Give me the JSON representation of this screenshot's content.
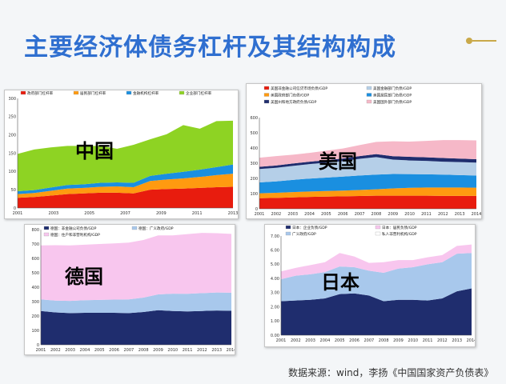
{
  "slide": {
    "title": "主要经济体债务杠杆及其结构构成",
    "source": "数据来源：wind，李扬《中国国家资产负债表》"
  },
  "chart_data": [
    {
      "id": "china",
      "type": "area",
      "stacked": true,
      "country_label": "中国",
      "ylim": [
        0,
        300
      ],
      "yticks": [
        "0",
        "50",
        "100",
        "150",
        "200",
        "250",
        "300"
      ],
      "xticks": [
        "2001",
        "2003",
        "2005",
        "2007",
        "2009",
        "2011",
        "2013"
      ],
      "legend": [
        "政府部门杠杆率",
        "居民部门杠杆率",
        "金融机构杠杆率",
        "企业部门杠杆率"
      ],
      "x": [
        2001,
        2002,
        2003,
        2004,
        2005,
        2006,
        2007,
        2008,
        2009,
        2010,
        2011,
        2012,
        2013,
        2014
      ],
      "series": [
        {
          "name": "政府部门杠杆率",
          "color": "#e81c0e",
          "values": [
            28,
            30,
            34,
            38,
            40,
            42,
            42,
            40,
            50,
            52,
            53,
            55,
            57,
            58
          ]
        },
        {
          "name": "居民部门杠杆率",
          "color": "#ff9a10",
          "values": [
            10,
            11,
            13,
            15,
            15,
            16,
            17,
            17,
            24,
            26,
            28,
            30,
            33,
            36
          ]
        },
        {
          "name": "金融机构杠杆率",
          "color": "#1a8fe0",
          "values": [
            8,
            8,
            9,
            10,
            10,
            11,
            11,
            12,
            14,
            16,
            18,
            20,
            22,
            25
          ]
        },
        {
          "name": "企业部门杠杆率",
          "color": "#8ed323",
          "values": [
            102,
            111,
            110,
            107,
            105,
            101,
            92,
            104,
            100,
            108,
            128,
            112,
            126,
            120
          ]
        }
      ]
    },
    {
      "id": "usa",
      "type": "area",
      "stacked": true,
      "country_label": "美国",
      "ylim": [
        0,
        600
      ],
      "yticks": [
        "0",
        "100",
        "200",
        "300",
        "400",
        "500",
        "600"
      ],
      "xticks": [
        "2001",
        "2002",
        "2003",
        "2004",
        "2005",
        "2006",
        "2007",
        "2008",
        "2009",
        "2010",
        "2011",
        "2012",
        "2013",
        "2014"
      ],
      "legend": [
        "美国非金融公司信贷市场负债/GDP",
        "美国金融部门负债/GDP",
        "美国政府部门负债/GDP",
        "美国居民部门负债/GDP",
        "美国州和地方政府负债/GDP",
        "美国国外部门负债/GDP"
      ],
      "x": [
        2001,
        2002,
        2003,
        2004,
        2005,
        2006,
        2007,
        2008,
        2009,
        2010,
        2011,
        2012,
        2013,
        2014
      ],
      "series": [
        {
          "name": "美国非金融公司信贷市场负债/GDP",
          "color": "#e81c0e",
          "values": [
            70,
            72,
            75,
            78,
            80,
            82,
            84,
            86,
            86,
            86,
            86,
            85,
            85,
            85
          ]
        },
        {
          "name": "美国政府部门负债/GDP",
          "color": "#ff9a10",
          "values": [
            32,
            33,
            35,
            36,
            37,
            38,
            40,
            42,
            48,
            52,
            54,
            55,
            55,
            54
          ]
        },
        {
          "name": "美国居民部门负债/GDP",
          "color": "#1a8fe0",
          "values": [
            72,
            75,
            80,
            85,
            88,
            92,
            95,
            97,
            95,
            90,
            87,
            85,
            82,
            80
          ]
        },
        {
          "name": "美国金融部门负债/GDP",
          "color": "#b5cfe8",
          "values": [
            88,
            90,
            92,
            95,
            98,
            102,
            110,
            115,
            95,
            90,
            88,
            85,
            85,
            85
          ]
        },
        {
          "name": "美国州和地方政府负债/GDP",
          "color": "#1f2d6e",
          "values": [
            14,
            15,
            16,
            16,
            17,
            17,
            18,
            20,
            22,
            24,
            24,
            24,
            23,
            22
          ]
        },
        {
          "name": "美国国外部门负债/GDP",
          "color": "#f6b8c8",
          "values": [
            60,
            62,
            58,
            58,
            62,
            66,
            72,
            80,
            98,
            100,
            108,
            118,
            122,
            124
          ]
        }
      ]
    },
    {
      "id": "germany",
      "type": "area",
      "stacked": true,
      "country_label": "德国",
      "ylim": [
        0,
        800
      ],
      "yticks": [
        "0",
        "100",
        "200",
        "300",
        "400",
        "500",
        "600",
        "700",
        "800"
      ],
      "xticks": [
        "2001",
        "2002",
        "2003",
        "2004",
        "2005",
        "2006",
        "2007",
        "2008",
        "2009",
        "2010",
        "2011",
        "2012",
        "2013",
        "2014"
      ],
      "legend": [
        "德国：非金融公司负债/GDP",
        "德国：广义政府/GDP",
        "德国：住户和非营利机构/GDP"
      ],
      "x": [
        2001,
        2002,
        2003,
        2004,
        2005,
        2006,
        2007,
        2008,
        2009,
        2010,
        2011,
        2012,
        2013,
        2014
      ],
      "series": [
        {
          "name": "德国：非金融公司负债/GDP",
          "color": "#1f2d6e",
          "values": [
            235,
            225,
            220,
            222,
            222,
            222,
            220,
            228,
            240,
            235,
            232,
            235,
            238,
            236
          ]
        },
        {
          "name": "德国：广义政府/GDP",
          "color": "#a8c8ec",
          "values": [
            80,
            82,
            85,
            88,
            90,
            92,
            95,
            100,
            110,
            120,
            122,
            124,
            125,
            126
          ]
        },
        {
          "name": "德国：住户和非营利机构/GDP",
          "color": "#f8c6ee",
          "values": [
            375,
            385,
            385,
            385,
            388,
            390,
            395,
            400,
            410,
            405,
            415,
            418,
            412,
            408
          ]
        }
      ]
    },
    {
      "id": "japan",
      "type": "area",
      "stacked": true,
      "country_label": "日本",
      "ylim": [
        0,
        7
      ],
      "yticks": [
        "0.00",
        "1.00",
        "2.00",
        "3.00",
        "4.00",
        "5.00",
        "6.00",
        "7.00"
      ],
      "xticks": [
        "2001",
        "2002",
        "2003",
        "2004",
        "2005",
        "2006",
        "2007",
        "2008",
        "2009",
        "2010",
        "2011",
        "2012",
        "2013",
        "2014"
      ],
      "legend": [
        "日本：企业负债/GDP",
        "日本：居民负债/GDP",
        "广义政府/GDP",
        "私人非营利机构/GDP"
      ],
      "x": [
        2001,
        2002,
        2003,
        2004,
        2005,
        2006,
        2007,
        2008,
        2009,
        2010,
        2011,
        2012,
        2013,
        2014
      ],
      "series": [
        {
          "name": "日本：企业负债/GDP",
          "color": "#1f2d6e",
          "values": [
            2.4,
            2.45,
            2.5,
            2.6,
            2.9,
            2.95,
            2.8,
            2.4,
            2.5,
            2.5,
            2.45,
            2.6,
            3.1,
            3.3
          ]
        },
        {
          "name": "广义政府/GDP",
          "color": "#a8c8ec",
          "values": [
            1.55,
            1.75,
            1.8,
            1.85,
            1.95,
            1.85,
            1.75,
            2.0,
            2.2,
            2.3,
            2.55,
            2.55,
            2.65,
            2.5
          ]
        },
        {
          "name": "日本：居民负债/GDP",
          "color": "#f8c6ee",
          "values": [
            0.55,
            0.55,
            0.65,
            0.7,
            0.95,
            0.75,
            0.55,
            0.75,
            0.6,
            0.5,
            0.5,
            0.5,
            0.55,
            0.6
          ]
        },
        {
          "name": "私人非营利机构/GDP",
          "color": "#ffffff",
          "values": [
            0,
            0,
            0,
            0,
            0,
            0,
            0,
            0,
            0,
            0,
            0,
            0,
            0,
            0
          ]
        }
      ]
    }
  ]
}
